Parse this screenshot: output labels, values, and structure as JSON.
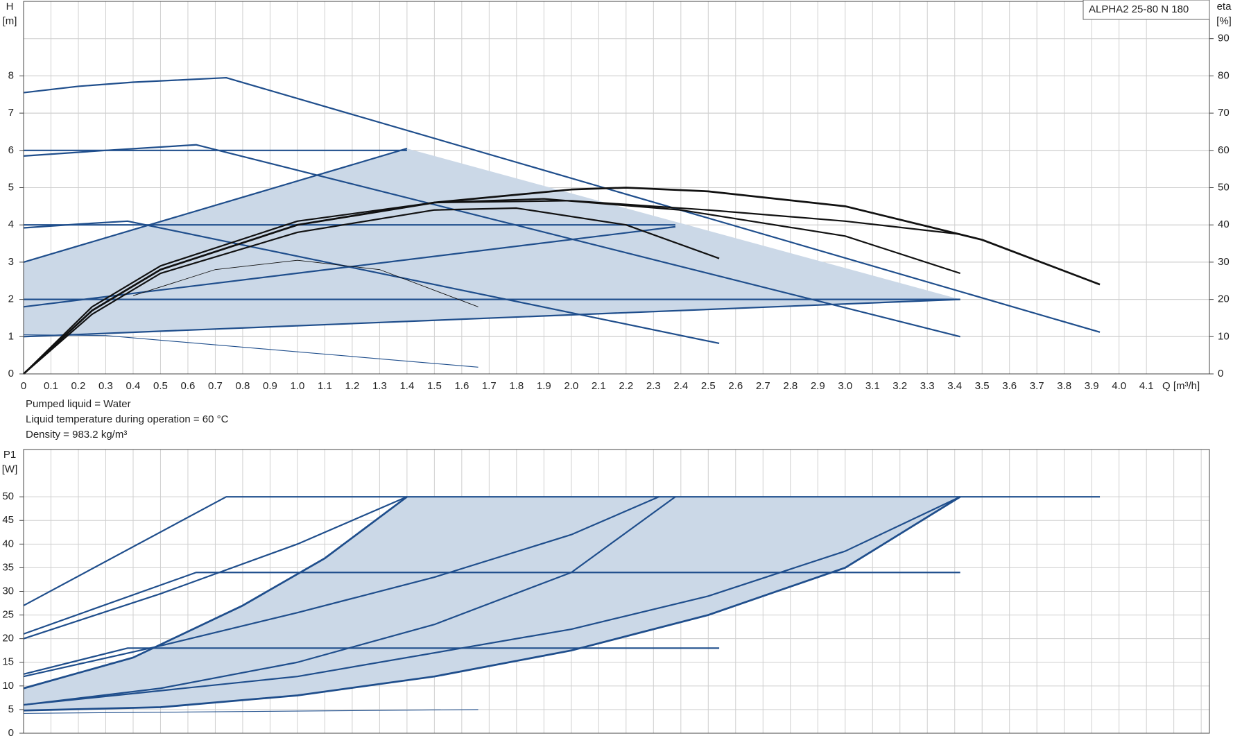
{
  "chart_data": [
    {
      "type": "line",
      "title": "ALPHA2 25-80 N 180",
      "ylabel": [
        "H",
        "[m]"
      ],
      "y2label": [
        "eta",
        "[%]"
      ],
      "xlabel": "Q [m³/h]",
      "annotations": [
        "Pumped liquid = Water",
        "Liquid temperature during operation = 60 °C",
        "Density = 983.2 kg/m³"
      ],
      "xlim": [
        0,
        4.33
      ],
      "xticks": [
        0,
        0.1,
        0.2,
        0.3,
        0.4,
        0.5,
        0.6,
        0.7,
        0.8,
        0.9,
        {
          "value": 1,
          "label": "1.0"
        },
        1.1,
        1.2,
        1.3,
        1.4,
        1.5,
        1.6,
        1.7,
        1.8,
        1.9,
        {
          "value": 2,
          "label": "2.0"
        },
        2.1,
        2.2,
        2.3,
        2.4,
        2.5,
        2.6,
        2.7,
        2.8,
        2.9,
        {
          "value": 3,
          "label": "3.0"
        },
        3.1,
        3.2,
        3.3,
        3.4,
        3.5,
        3.6,
        3.7,
        3.8,
        3.9,
        {
          "value": 4,
          "label": "4.0"
        },
        4.1
      ],
      "ylim": [
        0,
        10
      ],
      "yticks": [
        0,
        1,
        2,
        3,
        4,
        5,
        6,
        7,
        8
      ],
      "y2lim": [
        0,
        100
      ],
      "y2ticks": [
        0,
        10,
        20,
        30,
        40,
        50,
        60,
        70,
        80,
        90
      ],
      "grid": true,
      "areas": [
        {
          "color": "#cbd8e7",
          "x": [
            0,
            1.4,
            3.42,
            0
          ],
          "values": [
            3,
            6.05,
            2,
            1
          ]
        }
      ],
      "series": [
        {
          "color": "#1f4e8c",
          "width": 2,
          "x": [
            0,
            0.2,
            0.4,
            0.6,
            0.74,
            3.93
          ],
          "values": [
            7.55,
            7.72,
            7.83,
            7.9,
            7.95,
            1.12
          ]
        },
        {
          "color": "#1f4e8c",
          "width": 2,
          "x": [
            0,
            0.3,
            0.63,
            3.42
          ],
          "values": [
            5.85,
            6,
            6.15,
            1
          ]
        },
        {
          "color": "#1f4e8c",
          "width": 2,
          "x": [
            0,
            0.2,
            0.38,
            2.54
          ],
          "values": [
            3.92,
            4.02,
            4.1,
            0.82
          ]
        },
        {
          "color": "#1f4e8c",
          "width": 1,
          "x": [
            0,
            0.3,
            1.66
          ],
          "values": [
            1.05,
            1.03,
            0.18
          ]
        },
        {
          "color": "#1f4e8c",
          "width": 2,
          "x": [
            0,
            1.4
          ],
          "values": [
            6,
            6
          ]
        },
        {
          "color": "#1f4e8c",
          "width": 2,
          "x": [
            0,
            2.38
          ],
          "values": [
            4,
            4
          ]
        },
        {
          "color": "#1f4e8c",
          "width": 2,
          "x": [
            0,
            3.42
          ],
          "values": [
            2,
            2
          ]
        },
        {
          "color": "#1f4e8c",
          "width": 2,
          "x": [
            0,
            1.4
          ],
          "values": [
            3,
            6.05
          ]
        },
        {
          "color": "#1f4e8c",
          "width": 2,
          "x": [
            0,
            2.38
          ],
          "values": [
            1.8,
            3.95
          ]
        },
        {
          "color": "#1f4e8c",
          "width": 2,
          "x": [
            0,
            3.42
          ],
          "values": [
            1,
            2
          ]
        },
        {
          "color": "#111111",
          "width": 2.5,
          "axis": "y2",
          "x": [
            0,
            0.25,
            0.5,
            1,
            1.5,
            2,
            2.2,
            2.5,
            3,
            3.5,
            3.93
          ],
          "values": [
            0,
            17,
            28,
            40,
            46,
            49.5,
            50,
            49,
            45,
            36,
            24
          ]
        },
        {
          "color": "#111111",
          "width": 2,
          "axis": "y2",
          "x": [
            0,
            0.25,
            0.5,
            1,
            1.5,
            2,
            2.5,
            3,
            3.42
          ],
          "values": [
            0,
            18,
            29,
            41,
            46,
            46.5,
            44,
            41,
            37.5
          ]
        },
        {
          "color": "#111111",
          "width": 2,
          "axis": "y2",
          "x": [
            0,
            0.25,
            0.5,
            1,
            1.5,
            1.9,
            2.4,
            3,
            3.42
          ],
          "values": [
            0,
            17,
            28,
            40,
            46,
            47,
            44,
            37,
            27
          ]
        },
        {
          "color": "#111111",
          "width": 2,
          "axis": "y2",
          "x": [
            0,
            0.25,
            0.5,
            1,
            1.5,
            1.8,
            2.2,
            2.54
          ],
          "values": [
            0,
            16,
            27,
            38,
            44,
            44.5,
            40,
            31
          ]
        },
        {
          "color": "#111111",
          "width": 0.8,
          "axis": "y2",
          "x": [
            0.4,
            0.7,
            1,
            1.3,
            1.66
          ],
          "values": [
            21,
            28,
            30.5,
            28,
            18
          ]
        }
      ]
    },
    {
      "type": "line",
      "ylabel": [
        "P1",
        "[W]"
      ],
      "xlim": [
        0,
        4.33
      ],
      "xgrid": [
        0,
        0.1,
        0.2,
        0.3,
        0.4,
        0.5,
        0.6,
        0.7,
        0.8,
        0.9,
        1,
        1.1,
        1.2,
        1.3,
        1.4,
        1.5,
        1.6,
        1.7,
        1.8,
        1.9,
        2,
        2.1,
        2.2,
        2.3,
        2.4,
        2.5,
        2.6,
        2.7,
        2.8,
        2.9,
        3,
        3.1,
        3.2,
        3.3,
        3.4,
        3.5,
        3.6,
        3.7,
        3.8,
        3.9,
        4,
        4.1,
        4.2,
        4.3
      ],
      "ylim": [
        0,
        60
      ],
      "yticks": [
        0,
        5,
        10,
        15,
        20,
        25,
        30,
        35,
        40,
        45,
        50
      ],
      "grid": true,
      "areas": [
        {
          "color": "#cbd8e7",
          "x": [
            0,
            0.5,
            1,
            1.5,
            2,
            2.5,
            3,
            3.42,
            1.4,
            1.1,
            0.8,
            0.4,
            0
          ],
          "values": [
            4.8,
            5.5,
            8,
            12,
            17.5,
            25,
            35,
            50,
            50,
            37,
            27,
            16,
            9.5
          ]
        }
      ],
      "series": [
        {
          "color": "#1f4e8c",
          "width": 2,
          "x": [
            0,
            0.74,
            3.93
          ],
          "values": [
            27,
            50,
            50
          ]
        },
        {
          "color": "#1f4e8c",
          "width": 2,
          "x": [
            0,
            0.63,
            3.42
          ],
          "values": [
            21,
            34,
            34
          ]
        },
        {
          "color": "#1f4e8c",
          "width": 2,
          "x": [
            0,
            0.38,
            2.54
          ],
          "values": [
            12.5,
            18,
            18
          ]
        },
        {
          "color": "#1f4e8c",
          "width": 1,
          "x": [
            0,
            1.66
          ],
          "values": [
            4.2,
            5
          ]
        },
        {
          "color": "#1f4e8c",
          "width": 2,
          "x": [
            0,
            0.5,
            1,
            1.4
          ],
          "values": [
            20,
            29.5,
            40,
            50
          ]
        },
        {
          "color": "#1f4e8c",
          "width": 2.5,
          "x": [
            0,
            0.4,
            0.8,
            1.1,
            1.4
          ],
          "values": [
            9.5,
            16,
            27,
            37,
            50
          ]
        },
        {
          "color": "#1f4e8c",
          "width": 2,
          "x": [
            0,
            0.5,
            1,
            1.5,
            2,
            2.32
          ],
          "values": [
            12,
            18.5,
            25.5,
            33,
            42,
            50
          ]
        },
        {
          "color": "#1f4e8c",
          "width": 2,
          "x": [
            0,
            0.5,
            1,
            1.5,
            2,
            2.38
          ],
          "values": [
            6,
            9.5,
            15,
            23,
            34,
            50
          ]
        },
        {
          "color": "#1f4e8c",
          "width": 2,
          "x": [
            0,
            1,
            2,
            2.5,
            3,
            3.42
          ],
          "values": [
            6,
            12,
            22,
            29,
            38.5,
            50
          ]
        },
        {
          "color": "#1f4e8c",
          "width": 2.5,
          "x": [
            0,
            0.5,
            1,
            1.5,
            2,
            2.5,
            3,
            3.42
          ],
          "values": [
            4.8,
            5.5,
            8,
            12,
            17.5,
            25,
            35,
            50
          ]
        }
      ]
    }
  ]
}
